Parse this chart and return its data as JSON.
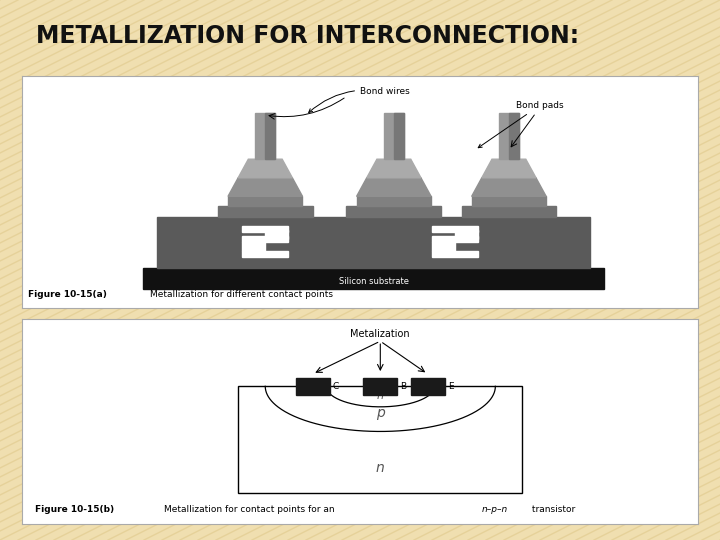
{
  "title": "METALLIZATION FOR INTERCONNECTION:",
  "title_fontsize": 17,
  "title_fontweight": "bold",
  "title_color": "#111111",
  "bg_color": "#F0DFB0",
  "stripe_color": "#E4CE94",
  "panel_bg": "#FFFFFF",
  "fig_width": 7.2,
  "fig_height": 5.4,
  "fig_a_label": "Figure 10-15(a)",
  "fig_a_caption": "Metallization for different contact points",
  "fig_b_label": "Figure 10-15(b)",
  "fig_b_caption": "Metallization for contact points for an n–p–n transistor",
  "silicon_substrate_label": "Silicon substrate",
  "bond_wires_label": "Bond wires",
  "bond_pads_label": "Bond pads",
  "metalization_label": "Metalization"
}
